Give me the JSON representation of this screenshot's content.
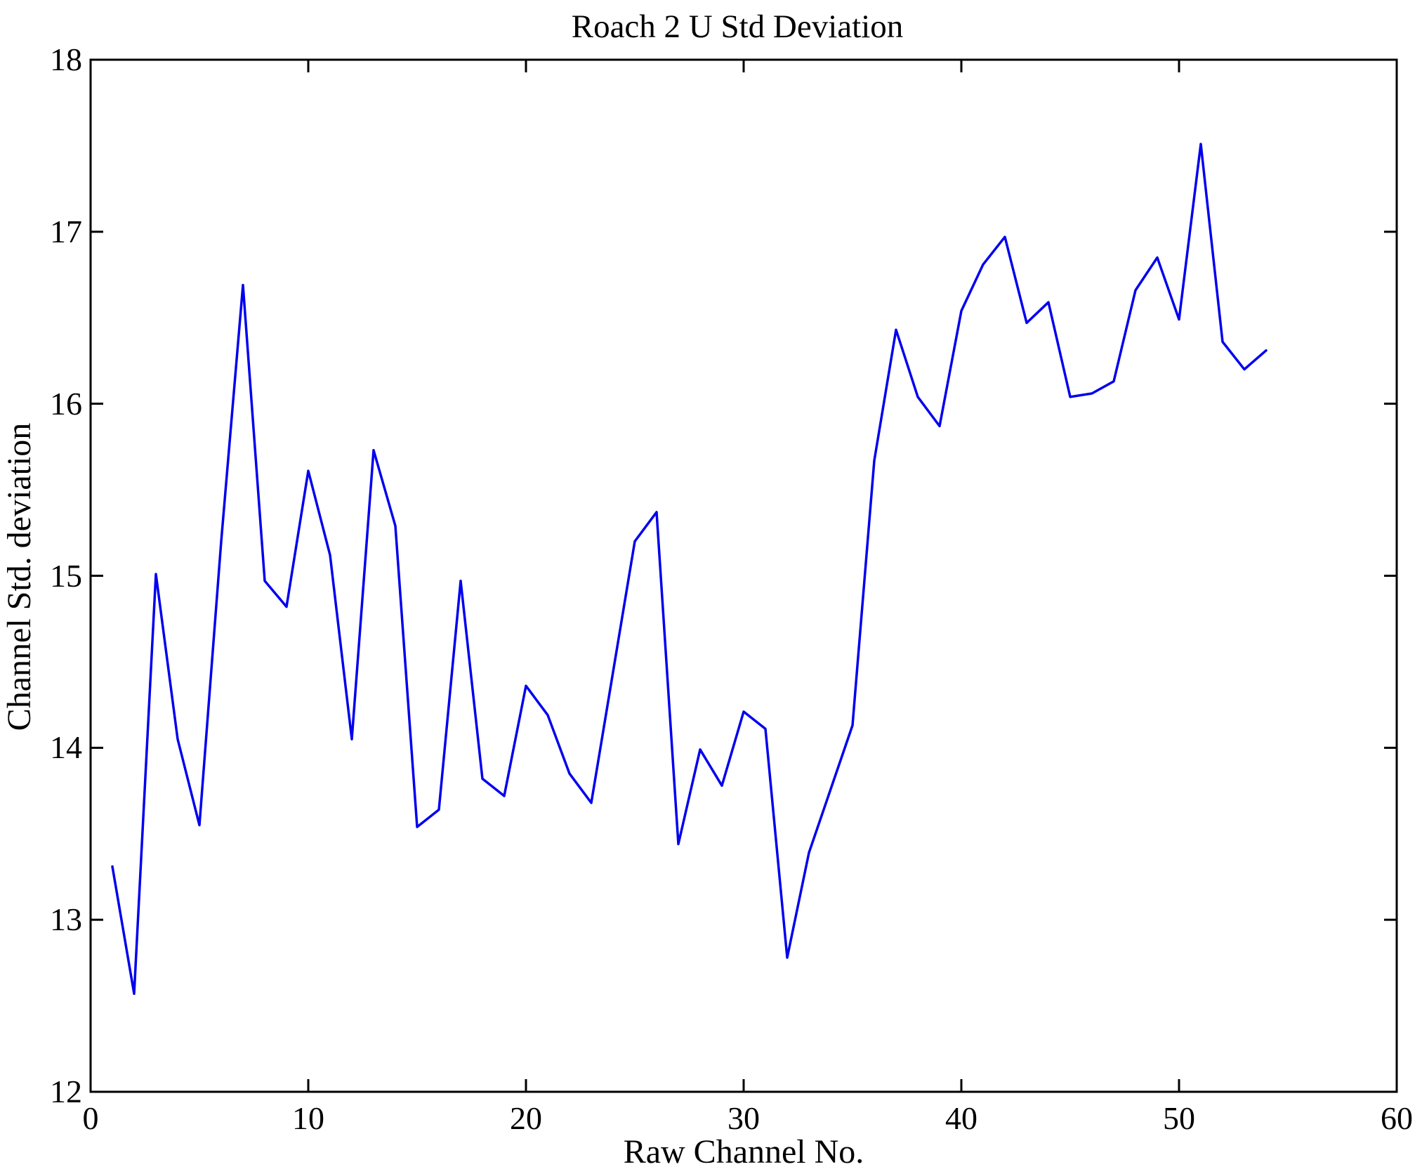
{
  "chart_data": {
    "type": "line",
    "title": "Roach 2 U Std Deviation",
    "xlabel": "Raw Channel No.",
    "ylabel": "Channel Std. deviation",
    "xlim": [
      0,
      60
    ],
    "ylim": [
      12,
      18
    ],
    "xticks": [
      "0",
      "10",
      "20",
      "30",
      "40",
      "50",
      "60"
    ],
    "xtick_values": [
      0,
      10,
      20,
      30,
      40,
      50,
      60
    ],
    "yticks": [
      "12",
      "13",
      "14",
      "15",
      "16",
      "17",
      "18"
    ],
    "ytick_values": [
      12,
      13,
      14,
      15,
      16,
      17,
      18
    ],
    "grid": false,
    "legend": null,
    "line_color": "#0000ee",
    "axis_color": "#000000",
    "background_color": "#ffffff",
    "x": [
      1,
      2,
      3,
      4,
      5,
      6,
      7,
      8,
      9,
      10,
      11,
      12,
      13,
      14,
      15,
      16,
      17,
      18,
      19,
      20,
      21,
      22,
      23,
      24,
      25,
      26,
      27,
      28,
      29,
      30,
      31,
      32,
      33,
      34,
      35,
      36,
      37,
      38,
      39,
      40,
      41,
      42,
      43,
      44,
      45,
      46,
      47,
      48,
      49,
      50,
      51,
      52,
      53,
      54
    ],
    "y": [
      13.31,
      12.57,
      15.01,
      14.05,
      13.55,
      15.2,
      16.69,
      14.97,
      14.82,
      15.61,
      15.12,
      14.05,
      15.73,
      15.29,
      13.54,
      13.64,
      14.97,
      13.82,
      13.72,
      14.36,
      14.19,
      13.85,
      13.68,
      14.44,
      15.2,
      15.37,
      13.44,
      13.99,
      13.78,
      14.21,
      14.11,
      12.78,
      13.39,
      13.76,
      14.13,
      15.67,
      16.43,
      16.04,
      15.87,
      16.54,
      16.81,
      16.97,
      16.47,
      16.59,
      16.04,
      16.06,
      16.13,
      16.66,
      16.85,
      16.49,
      17.51,
      16.36,
      16.2,
      16.31
    ]
  }
}
